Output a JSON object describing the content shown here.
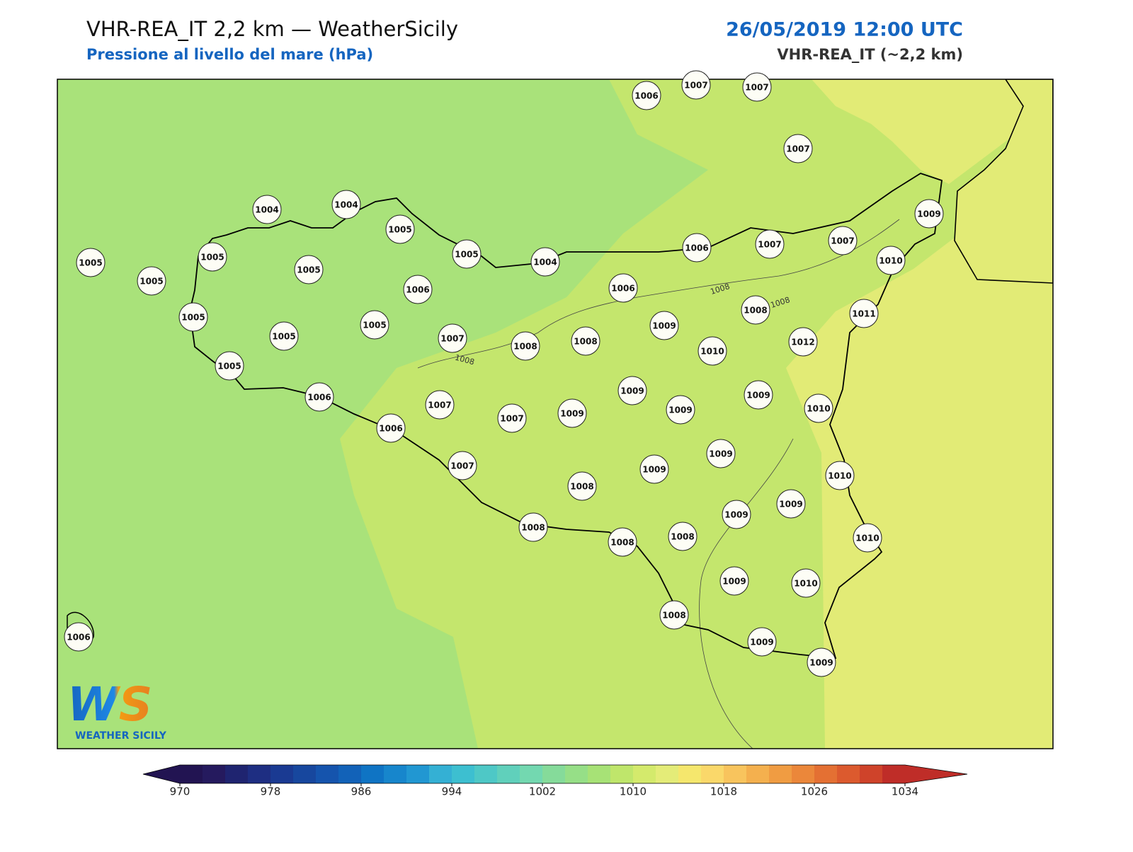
{
  "header": {
    "title": "VHR-REA_IT 2,2 km — WeatherSicily",
    "subtitle": "Pressione al livello del mare (hPa)",
    "datetime": "26/05/2019 12:00 UTC",
    "model": "VHR-REA_IT (~2,2 km)"
  },
  "stations": [
    1006,
    1007,
    1007,
    1007,
    1004,
    1004,
    1005,
    1005,
    1005,
    1005,
    1005,
    1004,
    1005,
    1006,
    1006,
    1007,
    1007,
    1009,
    1010,
    1006,
    1005,
    1005,
    1005,
    1007,
    1008,
    1008,
    1009,
    1008,
    1011,
    1010,
    1012,
    1005,
    1006,
    1007,
    1007,
    1009,
    1009,
    1009,
    1009,
    1010,
    1006,
    1007,
    1009,
    1009,
    1008,
    1010,
    1009,
    1009,
    1008,
    1008,
    1008,
    1010,
    1009,
    1010,
    1008,
    1009,
    1009,
    1006
  ],
  "contour_labels": [
    1008,
    1008,
    1008
  ],
  "logo": {
    "mark": "WS",
    "name": "WEATHER SICILY"
  },
  "colorbar": {
    "ticks": [
      970,
      978,
      986,
      994,
      1002,
      1010,
      1018,
      1026,
      1034
    ],
    "colors": [
      "#221452",
      "#251a5e",
      "#1f2470",
      "#1e2e82",
      "#1a3a92",
      "#17479e",
      "#1554ad",
      "#1262b8",
      "#0f74c4",
      "#1786cc",
      "#2197d2",
      "#34b0d4",
      "#3dbfd0",
      "#4ec8c6",
      "#60d0bb",
      "#73d8b0",
      "#85db9a",
      "#96df87",
      "#a7e276",
      "#bfe66b",
      "#d4ea6c",
      "#e4ec78",
      "#f5e76d",
      "#fad86a",
      "#f8c45d",
      "#f4b04e",
      "#f09c42",
      "#eb873a",
      "#e47033",
      "#dc5a2e",
      "#cf432a",
      "#bf2d28"
    ]
  }
}
